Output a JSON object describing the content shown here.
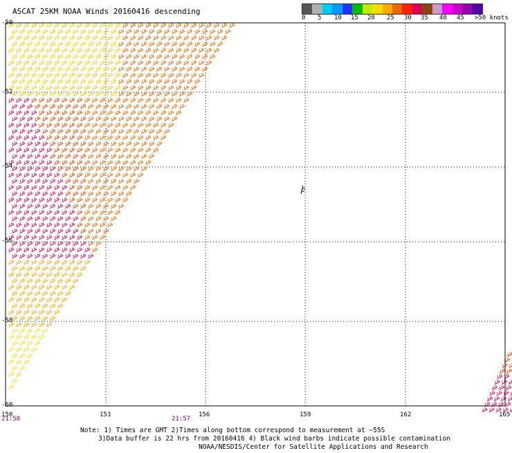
{
  "header": {
    "title": "ASCAT 25KM NOAA Winds 20160416 descending"
  },
  "legend": {
    "colors": [
      "#555555",
      "#b0b0b0",
      "#00ccee",
      "#0099ff",
      "#2233ff",
      "#00bb00",
      "#bbee00",
      "#ffdd00",
      "#ffaa00",
      "#ee6600",
      "#ff2200",
      "#dd0055",
      "#8b4513",
      "#cc99cc",
      "#ff00ff",
      "#cc00cc",
      "#9900aa",
      "#5500aa"
    ],
    "tick_labels": [
      "0",
      "5",
      "10",
      "15",
      "20",
      "25",
      "30",
      "35",
      "40",
      "45",
      ">50 knots"
    ]
  },
  "map": {
    "latitude_labels": [
      "-50",
      "-52",
      "-54",
      "-56",
      "-58",
      "-60"
    ],
    "longitude_labels": [
      "150",
      "153",
      "156",
      "159",
      "162",
      "165"
    ],
    "times": [
      "21:58",
      "21:57"
    ]
  },
  "notes": {
    "line1": "Note: 1) Times are GMT 2)Times along bottom correspond to measurement at −55S",
    "line2": "3)Data buffer is 22 hrs from 20160416 4) Black wind barbs indicate possible contamination",
    "line3": "NOAA/NESDIS/Center for Satellite Applications and Research"
  }
}
